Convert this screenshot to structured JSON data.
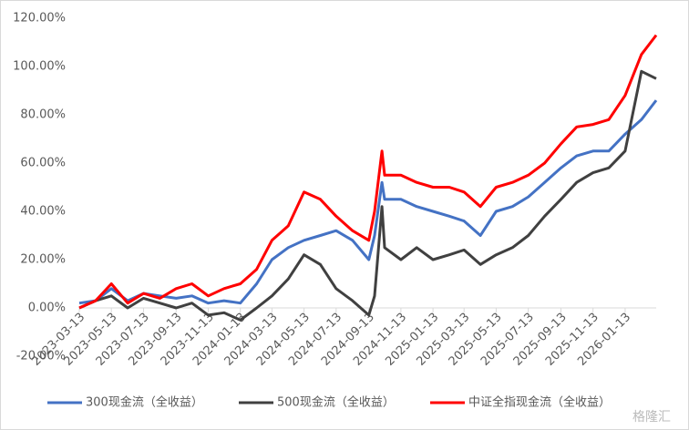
{
  "chart_data": {
    "type": "line",
    "x": [
      "2023-03-13",
      "2023-04-13",
      "2023-05-13",
      "2023-06-13",
      "2023-07-13",
      "2023-08-13",
      "2023-09-13",
      "2023-10-13",
      "2023-11-13",
      "2023-12-13",
      "2024-01-13",
      "2024-02-13",
      "2024-03-13",
      "2024-04-13",
      "2024-05-13",
      "2024-06-13",
      "2024-07-13",
      "2024-08-13",
      "2024-09-13",
      "2024-09-24",
      "2024-10-08",
      "2024-10-13",
      "2024-11-13",
      "2024-12-13",
      "2025-01-13",
      "2025-02-13",
      "2025-03-13",
      "2025-04-13",
      "2025-05-13",
      "2025-06-13",
      "2025-07-13",
      "2025-08-13",
      "2025-09-13",
      "2025-10-13",
      "2025-11-13",
      "2025-12-13",
      "2026-01-13",
      "2026-02-13",
      "2026-03-13"
    ],
    "series": [
      {
        "name": "300现金流（全收益）",
        "color": "#4472c4",
        "values": [
          2,
          3,
          8,
          3,
          6,
          5,
          4,
          5,
          2,
          3,
          2,
          10,
          20,
          25,
          28,
          30,
          32,
          28,
          20,
          30,
          52,
          45,
          45,
          42,
          40,
          38,
          36,
          30,
          40,
          42,
          46,
          52,
          58,
          63,
          65,
          65,
          72,
          78,
          86
        ]
      },
      {
        "name": "500现金流（全收益）",
        "color": "#404040",
        "values": [
          0,
          3,
          5,
          0,
          4,
          2,
          0,
          2,
          -3,
          -2,
          -5,
          0,
          5,
          12,
          22,
          18,
          8,
          3,
          -3,
          5,
          42,
          25,
          20,
          25,
          20,
          22,
          24,
          18,
          22,
          25,
          30,
          38,
          45,
          52,
          56,
          58,
          65,
          98,
          95
        ]
      },
      {
        "name": "中证全指现金流（全收益）",
        "color": "#ff0000",
        "values": [
          0,
          3,
          10,
          2,
          6,
          4,
          8,
          10,
          5,
          8,
          10,
          16,
          28,
          34,
          48,
          45,
          38,
          32,
          28,
          40,
          65,
          55,
          55,
          52,
          50,
          50,
          48,
          42,
          50,
          52,
          55,
          60,
          68,
          75,
          76,
          78,
          88,
          105,
          113
        ]
      }
    ],
    "xlim": [
      "2023-03-13",
      "2026-03-13"
    ],
    "xticks": [
      "2023-03-13",
      "2023-05-13",
      "2023-07-13",
      "2023-09-13",
      "2023-11-13",
      "2024-01-13",
      "2024-03-13",
      "2024-05-13",
      "2024-07-13",
      "2024-09-13",
      "2024-11-13",
      "2025-01-13",
      "2025-03-13",
      "2025-05-13",
      "2025-07-13",
      "2025-09-13",
      "2025-11-13",
      "2026-01-13"
    ],
    "ylim": [
      -20,
      120
    ],
    "yticks": [
      {
        "value": -20,
        "label": "-20.00%"
      },
      {
        "value": 0,
        "label": "0.00%"
      },
      {
        "value": 20,
        "label": "20.00%"
      },
      {
        "value": 40,
        "label": "40.00%"
      },
      {
        "value": 60,
        "label": "60.00%"
      },
      {
        "value": 80,
        "label": "80.00%"
      },
      {
        "value": 100,
        "label": "100.00%"
      },
      {
        "value": 120,
        "label": "120.00%"
      }
    ],
    "grid": false,
    "legend": "bottom",
    "watermark": "格隆汇"
  }
}
